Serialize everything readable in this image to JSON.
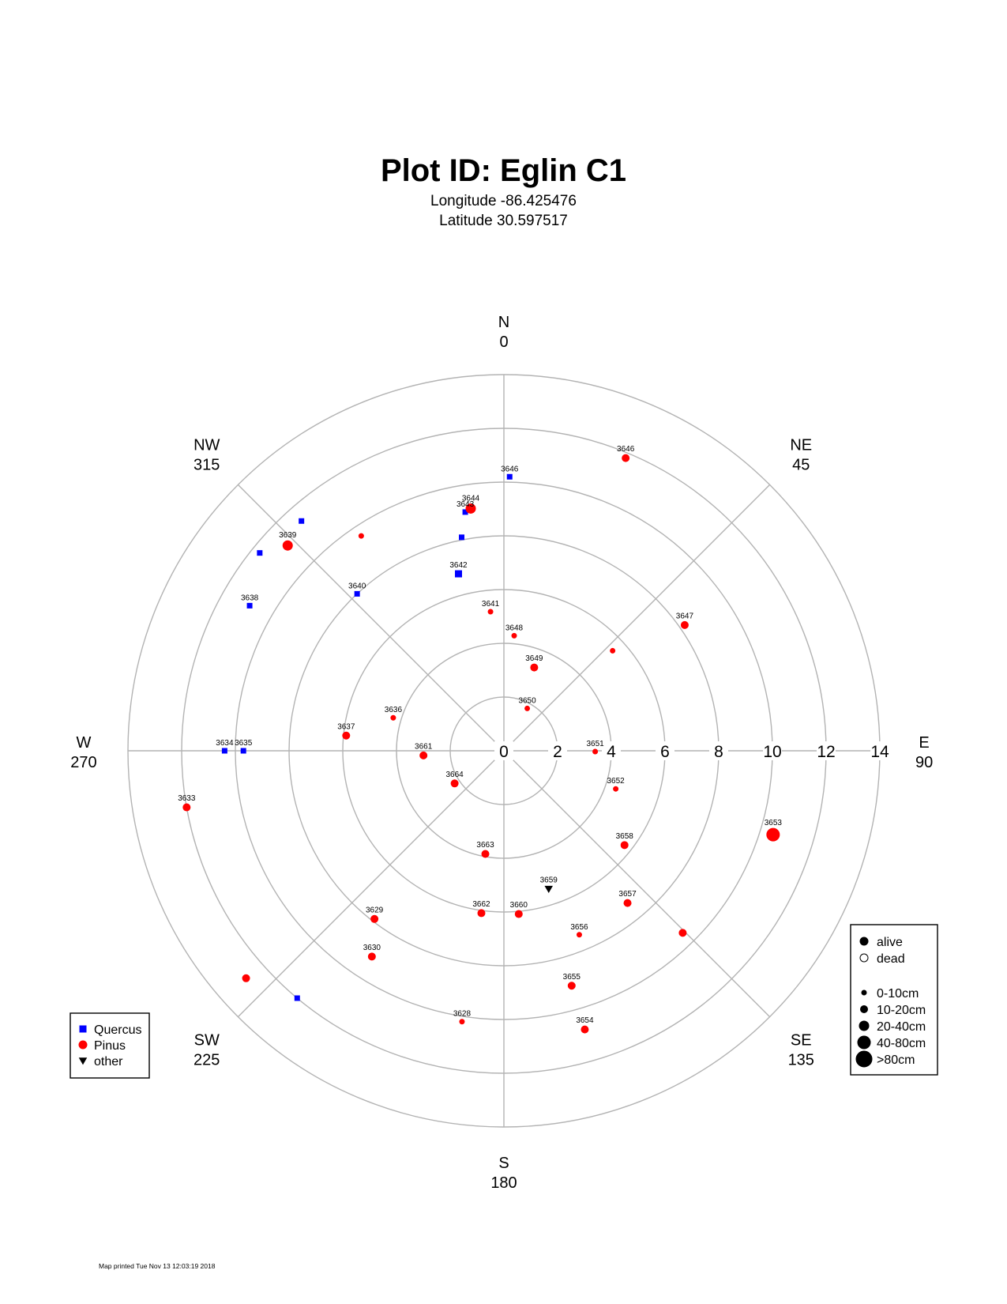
{
  "header": {
    "title": "Plot ID:  Eglin C1",
    "longitude": "Longitude -86.425476",
    "latitude": "Latitude 30.597517"
  },
  "footer": {
    "printed": "Map printed Tue Nov 13 12:03:19 2018"
  },
  "chart_data": {
    "type": "scatter",
    "coordinate_system": "polar",
    "title": "Plot ID:  Eglin C1",
    "radial_axis": {
      "range": [
        0,
        14
      ],
      "ticks": [
        "0",
        "2",
        "4",
        "6",
        "8",
        "10",
        "12",
        "14"
      ],
      "grid": true
    },
    "directions": [
      {
        "label": "N",
        "azimuth": "0",
        "deg": 0
      },
      {
        "label": "NE",
        "azimuth": "45",
        "deg": 45
      },
      {
        "label": "E",
        "azimuth": "90",
        "deg": 90
      },
      {
        "label": "SE",
        "azimuth": "135",
        "deg": 135
      },
      {
        "label": "S",
        "azimuth": "180",
        "deg": 180
      },
      {
        "label": "SW",
        "azimuth": "225",
        "deg": 225
      },
      {
        "label": "W",
        "azimuth": "270",
        "deg": 270
      },
      {
        "label": "NW",
        "azimuth": "315",
        "deg": 315
      }
    ],
    "species_legend": {
      "position": "bottom-left",
      "entries": [
        {
          "name": "Quercus",
          "shape": "square",
          "color": "#0000ff"
        },
        {
          "name": "Pinus",
          "shape": "circle",
          "color": "#ff0000"
        },
        {
          "name": "other",
          "shape": "triangle",
          "color": "#000000"
        }
      ]
    },
    "status_legend": {
      "position": "bottom-right",
      "status": [
        {
          "name": "alive",
          "fill": true
        },
        {
          "name": "dead",
          "fill": false
        }
      ],
      "sizes": [
        {
          "name": "0-10cm",
          "size": 1
        },
        {
          "name": "10-20cm",
          "size": 2
        },
        {
          "name": "20-40cm",
          "size": 3
        },
        {
          "name": "40-80cm",
          "size": 4
        },
        {
          "name": ">80cm",
          "size": 5
        }
      ]
    },
    "trees": [
      {
        "id": "3646",
        "species": "Pinus",
        "azimuth": 22.6,
        "distance": 11.8,
        "size": 2
      },
      {
        "id": "3646",
        "species": "Quercus",
        "azimuth": 1.2,
        "distance": 10.2,
        "size": 1
      },
      {
        "id": "3643",
        "species": "Quercus",
        "azimuth": 350.8,
        "distance": 9.0,
        "size": 1
      },
      {
        "id": "3644",
        "species": "Pinus",
        "azimuth": 352.2,
        "distance": 9.1,
        "size": 3
      },
      {
        "id": "",
        "species": "Quercus",
        "azimuth": 348.8,
        "distance": 8.1,
        "size": 1
      },
      {
        "id": "3642",
        "species": "Quercus",
        "azimuth": 345.6,
        "distance": 6.8,
        "size": 2
      },
      {
        "id": "3641",
        "species": "Pinus",
        "azimuth": 354.5,
        "distance": 5.2,
        "size": 1
      },
      {
        "id": "3648",
        "species": "Pinus",
        "azimuth": 5.1,
        "distance": 4.3,
        "size": 1
      },
      {
        "id": "3649",
        "species": "Pinus",
        "azimuth": 20.0,
        "distance": 3.3,
        "size": 2
      },
      {
        "id": "3650",
        "species": "Pinus",
        "azimuth": 28.9,
        "distance": 1.8,
        "size": 1
      },
      {
        "id": "3651",
        "species": "Pinus",
        "azimuth": 90.5,
        "distance": 3.4,
        "size": 1
      },
      {
        "id": "3652",
        "species": "Pinus",
        "azimuth": 108.8,
        "distance": 4.4,
        "size": 1
      },
      {
        "id": "3653",
        "species": "Pinus",
        "azimuth": 107.3,
        "distance": 10.5,
        "size": 4
      },
      {
        "id": "3658",
        "species": "Pinus",
        "azimuth": 128.0,
        "distance": 5.7,
        "size": 2
      },
      {
        "id": "3657",
        "species": "Pinus",
        "azimuth": 140.9,
        "distance": 7.3,
        "size": 2
      },
      {
        "id": "",
        "species": "Pinus",
        "azimuth": 135.5,
        "distance": 9.5,
        "size": 2
      },
      {
        "id": "3659",
        "species": "other",
        "azimuth": 162.0,
        "distance": 5.4,
        "size": 1
      },
      {
        "id": "3660",
        "species": "Pinus",
        "azimuth": 174.8,
        "distance": 6.1,
        "size": 2
      },
      {
        "id": "3656",
        "species": "Pinus",
        "azimuth": 157.7,
        "distance": 7.4,
        "size": 1
      },
      {
        "id": "3655",
        "species": "Pinus",
        "azimuth": 163.9,
        "distance": 9.1,
        "size": 2
      },
      {
        "id": "3654",
        "species": "Pinus",
        "azimuth": 163.8,
        "distance": 10.8,
        "size": 2
      },
      {
        "id": "3664",
        "species": "Pinus",
        "azimuth": 236.5,
        "distance": 2.2,
        "size": 2
      },
      {
        "id": "3663",
        "species": "Pinus",
        "azimuth": 190.2,
        "distance": 3.9,
        "size": 2
      },
      {
        "id": "3662",
        "species": "Pinus",
        "azimuth": 187.9,
        "distance": 6.1,
        "size": 2
      },
      {
        "id": "3629",
        "species": "Pinus",
        "azimuth": 217.6,
        "distance": 7.9,
        "size": 2
      },
      {
        "id": "3630",
        "species": "Pinus",
        "azimuth": 212.7,
        "distance": 9.1,
        "size": 2
      },
      {
        "id": "3628",
        "species": "Pinus",
        "azimuth": 188.8,
        "distance": 10.2,
        "size": 1
      },
      {
        "id": "",
        "species": "Pinus",
        "azimuth": 228.6,
        "distance": 12.8,
        "size": 2
      },
      {
        "id": "",
        "species": "Quercus",
        "azimuth": 219.9,
        "distance": 12.0,
        "size": 1
      },
      {
        "id": "3661",
        "species": "Pinus",
        "azimuth": 266.7,
        "distance": 3.0,
        "size": 2
      },
      {
        "id": "3636",
        "species": "Pinus",
        "azimuth": 286.6,
        "distance": 4.3,
        "size": 1
      },
      {
        "id": "3637",
        "species": "Pinus",
        "azimuth": 275.5,
        "distance": 5.9,
        "size": 2
      },
      {
        "id": "3634",
        "species": "Quercus",
        "azimuth": 270.0,
        "distance": 10.4,
        "size": 1
      },
      {
        "id": "3635",
        "species": "Quercus",
        "azimuth": 270.0,
        "distance": 9.7,
        "size": 1
      },
      {
        "id": "3633",
        "species": "Pinus",
        "azimuth": 259.9,
        "distance": 12.0,
        "size": 2
      },
      {
        "id": "3640",
        "species": "Quercus",
        "azimuth": 316.9,
        "distance": 8.0,
        "size": 1
      },
      {
        "id": "3639",
        "species": "Pinus",
        "azimuth": 313.5,
        "distance": 11.1,
        "size": 3
      },
      {
        "id": "3638",
        "species": "Quercus",
        "azimuth": 299.7,
        "distance": 10.9,
        "size": 1
      },
      {
        "id": "",
        "species": "Quercus",
        "azimuth": 309.0,
        "distance": 11.7,
        "size": 1
      },
      {
        "id": "",
        "species": "Quercus",
        "azimuth": 318.6,
        "distance": 11.4,
        "size": 1
      },
      {
        "id": "",
        "species": "Pinus",
        "azimuth": 326.4,
        "distance": 9.6,
        "size": 1
      },
      {
        "id": "",
        "species": "Pinus",
        "azimuth": 47.4,
        "distance": 5.5,
        "size": 1
      },
      {
        "id": "3647",
        "species": "Pinus",
        "azimuth": 55.2,
        "distance": 8.2,
        "size": 2
      }
    ]
  }
}
